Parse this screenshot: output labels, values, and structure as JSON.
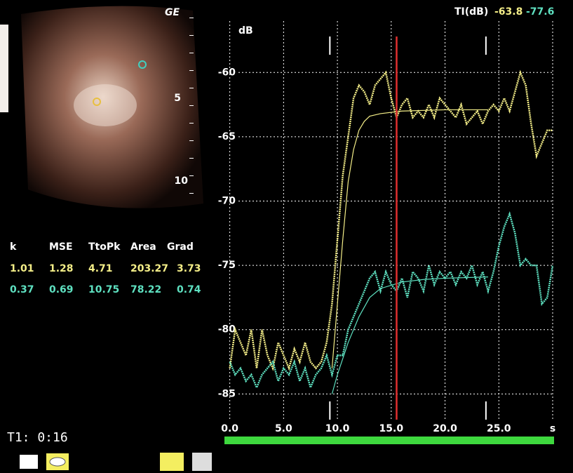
{
  "chart_data": {
    "type": "line",
    "y_label": "dB",
    "xlim": [
      -1.8,
      30
    ],
    "ylim": [
      -87,
      -56
    ],
    "xticks": [
      {
        "value": 0,
        "label": "0.0"
      },
      {
        "value": 5,
        "label": "5.0"
      },
      {
        "value": 10,
        "label": "10.0"
      },
      {
        "value": 15,
        "label": "15.0"
      },
      {
        "value": 20,
        "label": "20.0"
      },
      {
        "value": 25,
        "label": "25.0"
      },
      {
        "value": 30,
        "label": "s"
      }
    ],
    "yticks": [
      -60,
      -65,
      -70,
      -75,
      -80,
      -85
    ],
    "grid": true,
    "cursor": 15.5,
    "cursor_color": "#e03030",
    "markers": [
      9.3,
      23.8
    ],
    "series": [
      {
        "color": "#f4ee88",
        "x": [
          0,
          0.5,
          1,
          1.5,
          2,
          2.5,
          3,
          3.5,
          4,
          4.5,
          5,
          5.5,
          6,
          6.5,
          7,
          7.5,
          8,
          8.5,
          9,
          9.5,
          10,
          10.5,
          11,
          11.5,
          12,
          12.5,
          13,
          13.5,
          14,
          14.5,
          15,
          15.5,
          16,
          16.5,
          17,
          17.5,
          18,
          18.5,
          19,
          19.5,
          20,
          20.5,
          21,
          21.5,
          22,
          22.5,
          23,
          23.5,
          24,
          24.5,
          25,
          25.5,
          26,
          26.5,
          27,
          27.5,
          28,
          28.5,
          29,
          29.5,
          30
        ],
        "values": [
          -83,
          -80,
          -81,
          -82,
          -80,
          -83,
          -80,
          -82,
          -83,
          -81,
          -82,
          -83,
          -81.5,
          -82.5,
          -81,
          -82.5,
          -83,
          -82.5,
          -81,
          -78,
          -73,
          -68,
          -65,
          -62,
          -61,
          -61.5,
          -62.5,
          -61,
          -60.5,
          -60,
          -62,
          -63.5,
          -62.5,
          -62,
          -63.5,
          -63,
          -63.5,
          -62.5,
          -63.5,
          -62,
          -62.5,
          -63,
          -63.5,
          -62.5,
          -64,
          -63.5,
          -63,
          -64,
          -63,
          -62.5,
          -63,
          -62,
          -63,
          -61.5,
          -60,
          -61,
          -64,
          -66.5,
          -65.5,
          -64.5,
          -64.5
        ],
        "width": 2.5,
        "dash": "2 1"
      },
      {
        "color": "#f4ee88",
        "x": [
          9.5,
          10,
          10.5,
          11,
          11.5,
          12,
          12.5,
          13,
          14,
          16,
          20,
          24
        ],
        "values": [
          -83,
          -78,
          -73,
          -68.5,
          -66,
          -64.5,
          -63.8,
          -63.4,
          -63.2,
          -63,
          -62.9,
          -62.9
        ],
        "width": 1.2,
        "dash": "none"
      },
      {
        "color": "#5ee0c0",
        "x": [
          0,
          0.5,
          1,
          1.5,
          2,
          2.5,
          3,
          3.5,
          4,
          4.5,
          5,
          5.5,
          6,
          6.5,
          7,
          7.5,
          8,
          8.5,
          9,
          9.5,
          10,
          10.5,
          11,
          11.5,
          12,
          12.5,
          13,
          13.5,
          14,
          14.5,
          15,
          15.5,
          16,
          16.5,
          17,
          17.5,
          18,
          18.5,
          19,
          19.5,
          20,
          20.5,
          21,
          21.5,
          22,
          22.5,
          23,
          23.5,
          24,
          24.5,
          25,
          25.5,
          26,
          26.5,
          27,
          27.5,
          28,
          28.5,
          29,
          29.5,
          30
        ],
        "values": [
          -82.5,
          -83.5,
          -83,
          -84,
          -83.5,
          -84.5,
          -83.5,
          -83,
          -82.5,
          -84,
          -83,
          -83.5,
          -82.5,
          -84,
          -83,
          -84.5,
          -83.5,
          -83,
          -82,
          -83.5,
          -82,
          -82,
          -80,
          -79,
          -78,
          -77,
          -76,
          -75.5,
          -77,
          -75.5,
          -76.5,
          -77,
          -76,
          -77.5,
          -75.5,
          -76,
          -77,
          -75,
          -76.5,
          -75.5,
          -76,
          -75.5,
          -76.5,
          -75.5,
          -76,
          -75,
          -76.5,
          -75.5,
          -77,
          -75.5,
          -73.5,
          -72,
          -71,
          -72.5,
          -75,
          -74.5,
          -75,
          -75,
          -78,
          -77.5,
          -75
        ],
        "width": 2.5,
        "dash": "2 1"
      },
      {
        "color": "#5ee0c0",
        "x": [
          9.5,
          10,
          11,
          12,
          13,
          14,
          16,
          18,
          20,
          24
        ],
        "values": [
          -85,
          -83.5,
          -81,
          -79,
          -77.5,
          -76.8,
          -76.3,
          -76.1,
          -76,
          -75.9
        ],
        "width": 1.2,
        "dash": "none"
      }
    ]
  },
  "readout": {
    "label": "TI(dB)",
    "values": [
      "-63.8",
      "-77.6"
    ]
  },
  "image_labels": {
    "brand": "GE",
    "depths": [
      "5",
      "10"
    ]
  },
  "table": {
    "header": [
      "k",
      "MSE",
      "TtoPk",
      "Area",
      "Grad"
    ],
    "rows": [
      [
        "1.01",
        "1.28",
        "4.71",
        "203.27",
        "3.73"
      ],
      [
        "0.37",
        "0.69",
        "10.75",
        "78.22",
        "0.74"
      ]
    ]
  },
  "timer": "T1: 0:16"
}
